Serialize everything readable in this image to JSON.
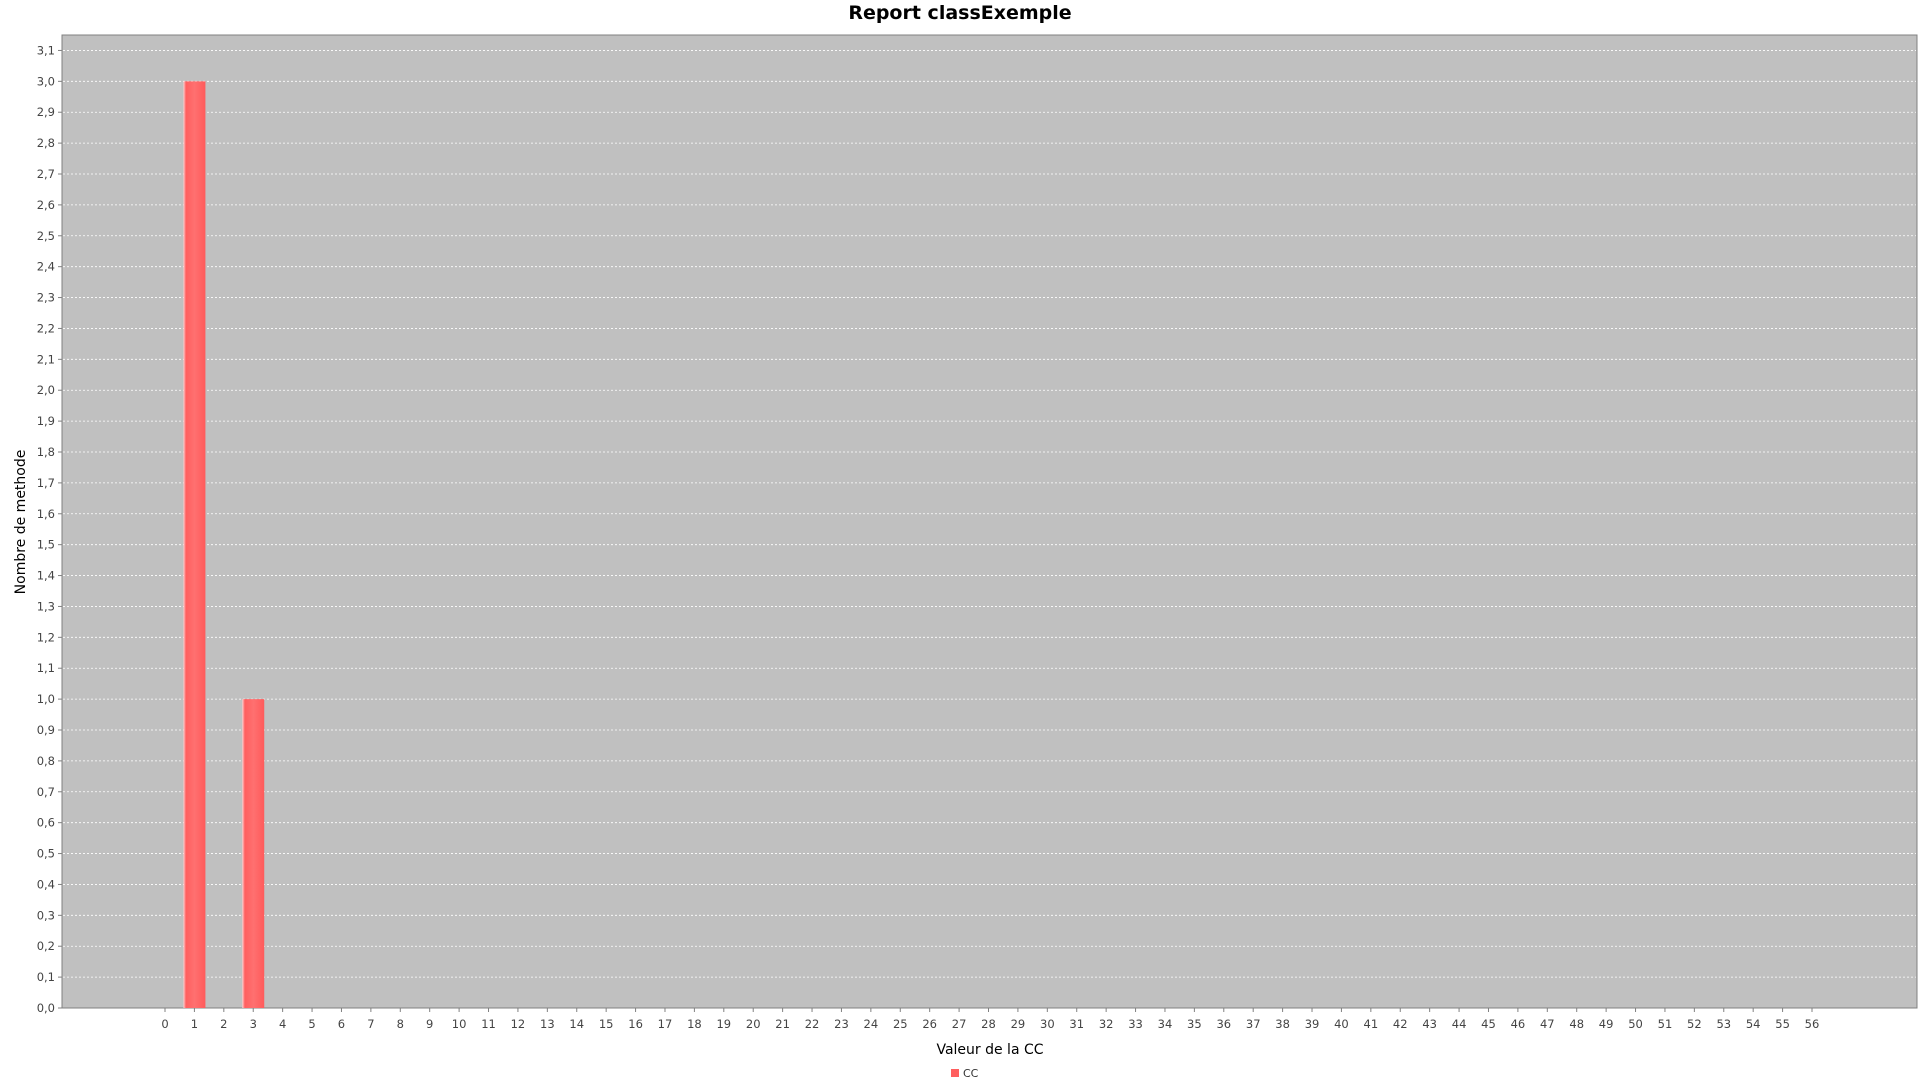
{
  "chart_data": {
    "type": "bar",
    "title": "Report classExemple",
    "xlabel": "Valeur de la CC",
    "ylabel": "Nombre de methode",
    "categories": [
      "0",
      "1",
      "2",
      "3",
      "4",
      "5",
      "6",
      "7",
      "8",
      "9",
      "10",
      "11",
      "12",
      "13",
      "14",
      "15",
      "16",
      "17",
      "18",
      "19",
      "20",
      "21",
      "22",
      "23",
      "24",
      "25",
      "26",
      "27",
      "28",
      "29",
      "30",
      "31",
      "32",
      "33",
      "34",
      "35",
      "36",
      "37",
      "38",
      "39",
      "40",
      "41",
      "42",
      "43",
      "44",
      "45",
      "46",
      "47",
      "48",
      "49",
      "50",
      "51",
      "52",
      "53",
      "54",
      "55",
      "56"
    ],
    "series": [
      {
        "name": "CC",
        "values": [
          0,
          3,
          0,
          1,
          0,
          0,
          0,
          0,
          0,
          0,
          0,
          0,
          0,
          0,
          0,
          0,
          0,
          0,
          0,
          0,
          0,
          0,
          0,
          0,
          0,
          0,
          0,
          0,
          0,
          0,
          0,
          0,
          0,
          0,
          0,
          0,
          0,
          0,
          0,
          0,
          0,
          0,
          0,
          0,
          0,
          0,
          0,
          0,
          0,
          0,
          0,
          0,
          0,
          0,
          0,
          0,
          0
        ]
      }
    ],
    "ylim": [
      0,
      3.15
    ],
    "yticks": [
      "0,0",
      "0,1",
      "0,2",
      "0,3",
      "0,4",
      "0,5",
      "0,6",
      "0,7",
      "0,8",
      "0,9",
      "1,0",
      "1,1",
      "1,2",
      "1,3",
      "1,4",
      "1,5",
      "1,6",
      "1,7",
      "1,8",
      "1,9",
      "2,0",
      "2,1",
      "2,2",
      "2,3",
      "2,4",
      "2,5",
      "2,6",
      "2,7",
      "2,8",
      "2,9",
      "3,0",
      "3,1"
    ],
    "grid": true,
    "legend_position": "bottom-center",
    "colors": {
      "plot_background": "#c0c0c0",
      "bar": "#ff5f5f",
      "gridline": "#ffffff"
    }
  }
}
